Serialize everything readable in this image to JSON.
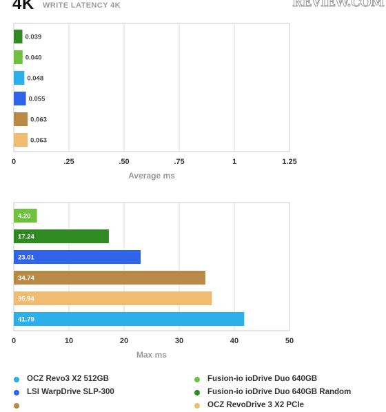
{
  "header": {
    "title": "4K",
    "subtitle": "WRITE LATENCY 4K",
    "logo_text": "REVIEW.COM"
  },
  "colors": {
    "ocz_revo3": "#2bb0ea",
    "lsi_warpdrive": "#2f63e8",
    "fusion_duo": "#6dc13d",
    "fusion_duo_random": "#2f8a22",
    "brown": "#b98a45",
    "tan": "#efbc72"
  },
  "chart_data": [
    {
      "type": "bar",
      "orientation": "horizontal",
      "xlabel": "Average ms",
      "xlim": [
        0,
        1.25
      ],
      "xticks": [
        "0",
        ".25",
        ".50",
        ".75",
        "1",
        "1.25"
      ],
      "tick_values": [
        0,
        0.25,
        0.5,
        0.75,
        1,
        1.25
      ],
      "grid": true,
      "bars": [
        {
          "value": 0.039,
          "label": "0.039",
          "color": "#2f8a22"
        },
        {
          "value": 0.04,
          "label": "0.040",
          "color": "#6dc13d"
        },
        {
          "value": 0.048,
          "label": "0.048",
          "color": "#2bb0ea"
        },
        {
          "value": 0.055,
          "label": "0.055",
          "color": "#2f63e8"
        },
        {
          "value": 0.063,
          "label": "0.063",
          "color": "#b98a45"
        },
        {
          "value": 0.063,
          "label": "0.063",
          "color": "#efbc72"
        }
      ]
    },
    {
      "type": "bar",
      "orientation": "horizontal",
      "xlabel": "Max ms",
      "xlim": [
        0,
        50
      ],
      "xticks": [
        "0",
        "10",
        "20",
        "30",
        "40",
        "50"
      ],
      "tick_values": [
        0,
        10,
        20,
        30,
        40,
        50
      ],
      "grid": true,
      "bars": [
        {
          "value": 4.2,
          "label": "4.20",
          "color": "#6dc13d"
        },
        {
          "value": 17.24,
          "label": "17.24",
          "color": "#2f8a22"
        },
        {
          "value": 23.01,
          "label": "23.01",
          "color": "#2f63e8"
        },
        {
          "value": 34.74,
          "label": "34.74",
          "color": "#b98a45"
        },
        {
          "value": 35.94,
          "label": "35.94",
          "color": "#efbc72"
        },
        {
          "value": 41.79,
          "label": "41.79",
          "color": "#2bb0ea"
        }
      ]
    }
  ],
  "legend": [
    {
      "label": "OCZ Revo3 X2 512GB",
      "color": "#2bb0ea"
    },
    {
      "label": "Fusion-io ioDrive Duo 640GB",
      "color": "#6dc13d"
    },
    {
      "label": "LSI WarpDrive SLP-300",
      "color": "#2f63e8"
    },
    {
      "label": "Fusion-io ioDrive Duo 640GB Random",
      "color": "#2f8a22"
    },
    {
      "label": "",
      "color": "#b98a45"
    },
    {
      "label": "OCZ RevoDrive 3 X2 PCIe",
      "color": "#efbc72"
    }
  ]
}
